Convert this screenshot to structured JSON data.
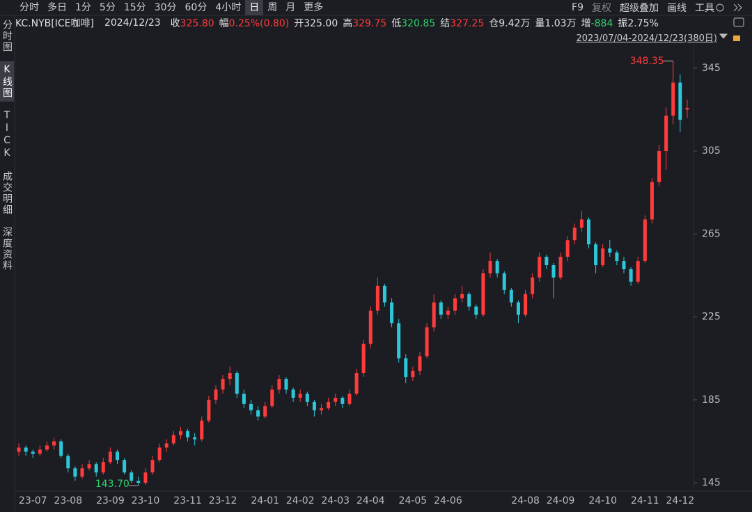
{
  "toolbar": {
    "tabs": [
      "分时",
      "多日",
      "1分",
      "5分",
      "15分",
      "30分",
      "60分",
      "4小时",
      "日",
      "周",
      "月",
      "更多"
    ],
    "active": 8,
    "tools": [
      "F9",
      "复权",
      "超级叠加",
      "画线",
      "工具"
    ]
  },
  "sidebar": {
    "items": [
      "分时图",
      "K线图",
      "TICK",
      "成交明细",
      "深度资料"
    ],
    "active": 1
  },
  "info": {
    "symbol": "KC.NYB[ICE咖啡]",
    "date": "2024/12/23",
    "fields": [
      {
        "label": "收",
        "value": "325.80",
        "color": "#ff3b3b"
      },
      {
        "label": "幅",
        "value": "0.25%(0.80)",
        "color": "#ff3b3b"
      },
      {
        "label": "开",
        "value": "325.00",
        "color": "#e0e0e0"
      },
      {
        "label": "高",
        "value": "329.75",
        "color": "#ff3b3b"
      },
      {
        "label": "低",
        "value": "320.85",
        "color": "#2fd36a"
      },
      {
        "label": "结",
        "value": "327.25",
        "color": "#ff3b3b"
      },
      {
        "label": "仓",
        "value": "9.42万",
        "color": "#e0e0e0"
      },
      {
        "label": "量",
        "value": "1.03万",
        "color": "#e0e0e0"
      },
      {
        "label": "增",
        "value": "-884",
        "color": "#2fd36a"
      },
      {
        "label": "振",
        "value": "2.75%",
        "color": "#e0e0e0"
      }
    ],
    "range": "2023/07/04-2024/12/23(380日)"
  },
  "chart_data": {
    "type": "candlestick",
    "up_color": "#ff3b3b",
    "down_color": "#2fc6d8",
    "categories": [
      null,
      null,
      "23-07",
      null,
      null,
      null,
      null,
      "23-08",
      null,
      null,
      null,
      null,
      null,
      "23-09",
      null,
      null,
      null,
      null,
      "23-10",
      null,
      null,
      null,
      null,
      null,
      "23-11",
      null,
      null,
      null,
      null,
      "23-12",
      null,
      null,
      null,
      null,
      null,
      "24-01",
      null,
      null,
      null,
      null,
      "24-02",
      null,
      null,
      null,
      null,
      "24-03",
      null,
      null,
      null,
      null,
      "24-04",
      null,
      null,
      null,
      null,
      null,
      "24-05",
      null,
      null,
      null,
      null,
      "24-06",
      null,
      null,
      null,
      null,
      null,
      null,
      null,
      null,
      null,
      null,
      "24-08",
      null,
      null,
      null,
      null,
      "24-09",
      null,
      null,
      null,
      null,
      null,
      "24-10",
      null,
      null,
      null,
      null,
      null,
      "24-11",
      null,
      null,
      null,
      null,
      "24-12",
      null
    ],
    "values": [
      [
        160,
        164,
        158,
        162
      ],
      [
        162,
        163,
        158,
        160
      ],
      [
        160,
        161,
        157,
        159
      ],
      [
        159,
        163,
        158,
        161
      ],
      [
        161,
        165,
        160,
        163
      ],
      [
        163,
        167,
        161,
        165
      ],
      [
        165,
        166,
        157,
        158
      ],
      [
        158,
        159,
        150,
        152
      ],
      [
        152,
        153,
        146,
        148
      ],
      [
        148,
        154,
        147,
        152
      ],
      [
        152,
        156,
        151,
        154
      ],
      [
        154,
        155,
        148,
        150
      ],
      [
        150,
        157,
        149,
        155
      ],
      [
        155,
        162,
        154,
        160
      ],
      [
        160,
        161,
        154,
        156
      ],
      [
        156,
        157,
        149,
        150
      ],
      [
        150,
        151,
        145,
        146
      ],
      [
        146,
        148,
        143.7,
        145
      ],
      [
        145,
        152,
        144,
        150
      ],
      [
        150,
        158,
        149,
        156
      ],
      [
        156,
        164,
        155,
        162
      ],
      [
        162,
        166,
        160,
        164
      ],
      [
        164,
        170,
        163,
        168
      ],
      [
        168,
        172,
        166,
        170
      ],
      [
        170,
        171,
        165,
        167
      ],
      [
        167,
        169,
        163,
        166
      ],
      [
        166,
        177,
        165,
        175
      ],
      [
        175,
        187,
        174,
        185
      ],
      [
        185,
        192,
        183,
        190
      ],
      [
        190,
        197,
        188,
        195
      ],
      [
        195,
        201,
        192,
        198
      ],
      [
        198,
        199,
        186,
        188
      ],
      [
        188,
        190,
        181,
        183
      ],
      [
        183,
        185,
        178,
        180
      ],
      [
        180,
        182,
        175,
        177
      ],
      [
        177,
        184,
        176,
        182
      ],
      [
        182,
        192,
        181,
        190
      ],
      [
        190,
        197,
        188,
        195
      ],
      [
        195,
        196,
        188,
        190
      ],
      [
        190,
        191,
        184,
        186
      ],
      [
        186,
        190,
        184,
        188
      ],
      [
        188,
        189,
        182,
        184
      ],
      [
        184,
        185,
        177,
        180
      ],
      [
        180,
        183,
        178,
        181
      ],
      [
        181,
        186,
        180,
        184
      ],
      [
        184,
        188,
        182,
        186
      ],
      [
        186,
        187,
        181,
        183
      ],
      [
        183,
        190,
        182,
        188
      ],
      [
        188,
        200,
        187,
        198
      ],
      [
        198,
        214,
        196,
        212
      ],
      [
        212,
        230,
        210,
        228
      ],
      [
        228,
        244,
        226,
        240
      ],
      [
        240,
        241,
        230,
        232
      ],
      [
        232,
        234,
        220,
        222
      ],
      [
        222,
        224,
        203,
        205
      ],
      [
        205,
        207,
        193,
        196
      ],
      [
        196,
        201,
        194,
        199
      ],
      [
        199,
        208,
        197,
        206
      ],
      [
        206,
        222,
        205,
        220
      ],
      [
        220,
        236,
        218,
        232
      ],
      [
        232,
        233,
        224,
        226
      ],
      [
        226,
        230,
        224,
        228
      ],
      [
        228,
        236,
        226,
        234
      ],
      [
        234,
        240,
        232,
        236
      ],
      [
        236,
        237,
        228,
        230
      ],
      [
        230,
        231,
        224,
        226
      ],
      [
        226,
        248,
        225,
        246
      ],
      [
        246,
        256,
        244,
        252
      ],
      [
        252,
        253,
        244,
        246
      ],
      [
        246,
        247,
        236,
        238
      ],
      [
        238,
        239,
        230,
        232
      ],
      [
        232,
        233,
        222,
        226
      ],
      [
        226,
        238,
        225,
        236
      ],
      [
        236,
        246,
        234,
        244
      ],
      [
        244,
        256,
        242,
        254
      ],
      [
        254,
        255,
        248,
        250
      ],
      [
        250,
        251,
        234,
        244
      ],
      [
        244,
        256,
        243,
        254
      ],
      [
        254,
        264,
        252,
        262
      ],
      [
        262,
        270,
        260,
        268
      ],
      [
        268,
        276,
        266,
        272
      ],
      [
        272,
        273,
        258,
        260
      ],
      [
        260,
        261,
        246,
        250
      ],
      [
        250,
        260,
        249,
        258
      ],
      [
        258,
        262,
        254,
        256
      ],
      [
        256,
        257,
        250,
        252
      ],
      [
        252,
        254,
        246,
        248
      ],
      [
        248,
        249,
        240,
        242
      ],
      [
        242,
        254,
        241,
        252
      ],
      [
        252,
        274,
        251,
        272
      ],
      [
        272,
        292,
        270,
        290
      ],
      [
        290,
        308,
        288,
        305
      ],
      [
        305,
        326,
        296,
        322
      ],
      [
        322,
        348.35,
        318,
        338
      ],
      [
        338,
        342,
        314,
        320
      ],
      [
        325.0,
        329.75,
        320.85,
        325.8
      ]
    ],
    "ylim": [
      141,
      355
    ],
    "yticks": [
      145,
      185,
      225,
      265,
      305,
      345
    ],
    "annotations": [
      {
        "label": "348.35",
        "value": 348.35,
        "color": "#ff3b3b"
      },
      {
        "label": "143.70",
        "value": 143.7,
        "color": "#2fd36a"
      }
    ]
  }
}
